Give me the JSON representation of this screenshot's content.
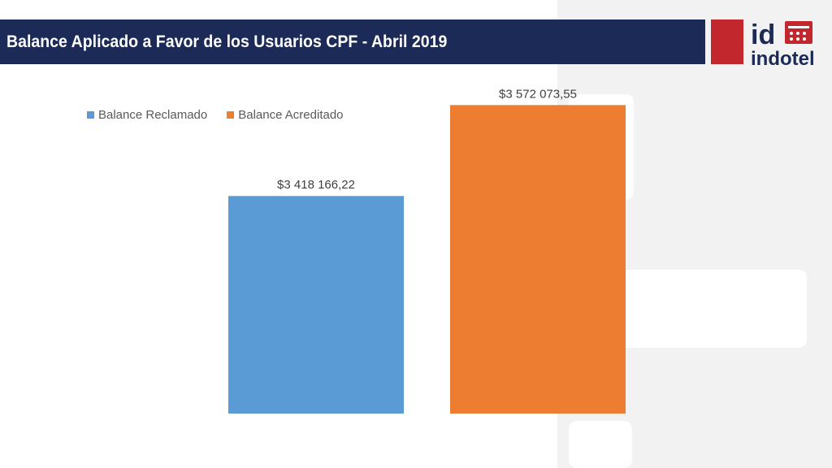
{
  "header": {
    "title": "Balance Aplicado a Favor de los Usuarios CPF - Abril 2019"
  },
  "logo": {
    "text": "indotel",
    "mark": "id"
  },
  "colors": {
    "title_bar": "#1b2a57",
    "logo_red": "#c1272d",
    "series1": "#5b9bd5",
    "series2": "#ed7d31"
  },
  "chart_data": {
    "type": "bar",
    "categories": [
      ""
    ],
    "series": [
      {
        "name": "Balance Reclamado",
        "values": [
          3418166.22
        ],
        "label": "$3 418 166,22",
        "color": "#5b9bd5"
      },
      {
        "name": "Balance Acreditado",
        "values": [
          3572073.55
        ],
        "label": "$3 572 073,55",
        "color": "#ed7d31"
      }
    ],
    "ylim": [
      3050000,
      3600000
    ],
    "grid": false,
    "legend_position": "top-left",
    "title": "",
    "xlabel": "",
    "ylabel": ""
  }
}
